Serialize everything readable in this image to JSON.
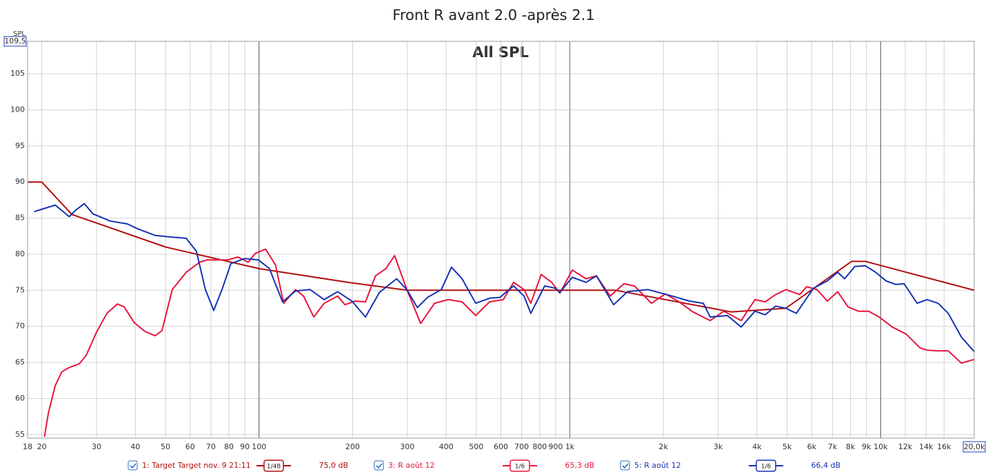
{
  "chart_data": {
    "type": "line",
    "title": "Front R avant 2.0 -après 2.1",
    "subtitle": "All SPL",
    "ylabel": "SPL",
    "xscale": "log",
    "grid": true,
    "xlim": [
      18,
      20000
    ],
    "ylim": [
      54.5,
      109.5
    ],
    "yticks": [
      55,
      60,
      65,
      70,
      75,
      80,
      85,
      90,
      95,
      100,
      105,
      {
        "value": 109.5,
        "label": "109,5"
      }
    ],
    "xticks": [
      18,
      20,
      30,
      40,
      50,
      60,
      70,
      80,
      90,
      100,
      200,
      300,
      400,
      500,
      600,
      700,
      800,
      900,
      {
        "value": 1000,
        "label": "1k"
      },
      {
        "value": 2000,
        "label": "2k"
      },
      {
        "value": 3000,
        "label": "3k"
      },
      {
        "value": 4000,
        "label": "4k"
      },
      {
        "value": 5000,
        "label": "5k"
      },
      {
        "value": 6000,
        "label": "6k"
      },
      {
        "value": 7000,
        "label": "7k"
      },
      {
        "value": 8000,
        "label": "8k"
      },
      {
        "value": 9000,
        "label": "9k"
      },
      {
        "value": 10000,
        "label": "10k"
      },
      {
        "value": 12000,
        "label": "12k"
      },
      {
        "value": 14000,
        "label": "14k"
      },
      {
        "value": 16000,
        "label": "16k"
      },
      {
        "value": 20000,
        "label": "20,0k"
      }
    ],
    "x_major_grid": [
      100,
      1000,
      10000
    ],
    "series": [
      {
        "name": "1: Target Target nov. 9 21:11",
        "smoothing": "1/48",
        "level": "75,0 dB",
        "color": "#b00e0e",
        "x": [
          18,
          20,
          25,
          50,
          100,
          200,
          300,
          1000,
          1400,
          3300,
          4950,
          8060,
          8930,
          20000
        ],
        "values": [
          90,
          90,
          85.5,
          81,
          78,
          76,
          75,
          75,
          75,
          72,
          72.5,
          79,
          79,
          75
        ]
      },
      {
        "name": "3: R août 12",
        "smoothing": "1/6",
        "level": "65,3 dB",
        "color": "#e8143c",
        "x": [
          20.4,
          21,
          22.1,
          23.2,
          24.5,
          26.4,
          27.8,
          30,
          32.4,
          35,
          36.8,
          39.7,
          42.9,
          46.3,
          48.7,
          52.6,
          58.3,
          64.5,
          68,
          79.2,
          85.5,
          92.3,
          97.1,
          105,
          113,
          120,
          131,
          139,
          150,
          162,
          179,
          189,
          204,
          220,
          237,
          256,
          273,
          299,
          331,
          367,
          406,
          450,
          498,
          552,
          611,
          659,
          712,
          749,
          809,
          874,
          929,
          1018,
          1128,
          1218,
          1348,
          1493,
          1612,
          1831,
          2029,
          2246,
          2488,
          2828,
          3132,
          3559,
          3940,
          4253,
          4594,
          4959,
          5492,
          5780,
          6241,
          6737,
          7274,
          7853,
          8478,
          9153,
          9882,
          10900,
          12100,
          13400,
          14100,
          15300,
          16500,
          18200,
          19200,
          20000
        ],
        "values": [
          54.7,
          58,
          61.8,
          63.7,
          64.3,
          64.8,
          66,
          69.2,
          71.8,
          73.1,
          72.7,
          70.5,
          69.3,
          68.7,
          69.4,
          75.1,
          77.5,
          78.9,
          79.2,
          79.2,
          79.6,
          78.9,
          80.1,
          80.7,
          78.5,
          73.2,
          75.1,
          74.2,
          71.3,
          73.2,
          74.2,
          73,
          73.5,
          73.4,
          77,
          78,
          79.8,
          75.1,
          70.4,
          73.2,
          73.7,
          73.4,
          71.5,
          73.4,
          73.7,
          76.1,
          75.1,
          73.2,
          77.2,
          76.1,
          74.6,
          77.8,
          76.6,
          77,
          74.2,
          75.9,
          75.6,
          73.2,
          74.5,
          73.4,
          72,
          70.8,
          72.1,
          70.8,
          73.7,
          73.4,
          74.4,
          75.1,
          74.4,
          75.5,
          75.1,
          73.5,
          74.8,
          72.7,
          72.1,
          72.1,
          71.3,
          69.9,
          68.9,
          67,
          66.7,
          66.6,
          66.6,
          64.9,
          65.2,
          65.4
        ]
      },
      {
        "name": "5: R août 12",
        "smoothing": "1/6",
        "level": "66,4 dB",
        "color": "#1432b4",
        "x": [
          18.9,
          19.9,
          22.1,
          24.5,
          25.7,
          27.4,
          29.2,
          33.2,
          37.7,
          40.8,
          46.3,
          51.3,
          58.3,
          62.9,
          67.2,
          71.5,
          76,
          81.2,
          90,
          99.6,
          108,
          119,
          131,
          146,
          162,
          179,
          199,
          220,
          244,
          277,
          299,
          323,
          348,
          386,
          416,
          450,
          498,
          552,
          595,
          659,
          712,
          749,
          830,
          896,
          929,
          1018,
          1128,
          1218,
          1383,
          1532,
          1785,
          2134,
          2426,
          2687,
          2828,
          3213,
          3559,
          3940,
          4253,
          4594,
          4959,
          5353,
          6084,
          6737,
          7274,
          7655,
          8264,
          8921,
          9632,
          10400,
          11200,
          11900,
          13100,
          14100,
          15300,
          16500,
          18200,
          20000
        ],
        "values": [
          85.9,
          86.2,
          86.8,
          85.2,
          86.1,
          87,
          85.6,
          84.6,
          84.2,
          83.5,
          82.6,
          82.4,
          82.2,
          80.4,
          75.1,
          72.2,
          75.1,
          78.7,
          79.4,
          79.2,
          78,
          73.4,
          74.9,
          75.1,
          73.7,
          74.8,
          73.5,
          71.3,
          74.7,
          76.6,
          75.1,
          72.6,
          74,
          75.1,
          78.2,
          76.6,
          73.2,
          73.9,
          74,
          75.6,
          74.2,
          71.8,
          75.6,
          75.3,
          74.7,
          76.8,
          76.1,
          77,
          73,
          74.8,
          75.1,
          74.2,
          73.5,
          73.2,
          71.3,
          71.5,
          69.9,
          72.1,
          71.6,
          72.8,
          72.5,
          71.8,
          75.3,
          76.3,
          77.5,
          76.6,
          78.3,
          78.4,
          77.5,
          76.3,
          75.8,
          75.9,
          73.2,
          73.7,
          73.2,
          71.8,
          68.5,
          66.5
        ]
      }
    ]
  }
}
